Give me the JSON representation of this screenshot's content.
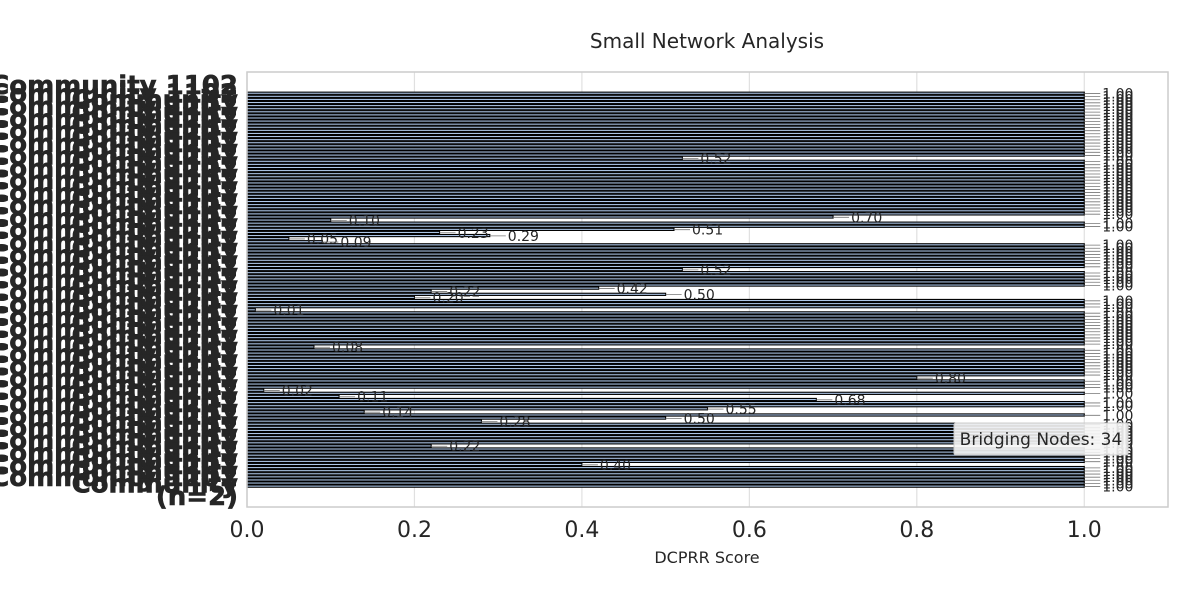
{
  "chart_data": {
    "type": "bar",
    "orientation": "horizontal",
    "title": "Small Network Analysis",
    "xlabel": "DCPRR Score",
    "ylabel": "",
    "xlim": [
      0.0,
      1.1
    ],
    "xticks": [
      0.0,
      0.2,
      0.4,
      0.6,
      0.8,
      1.0
    ],
    "xtick_labels": [
      "0.0",
      "0.2",
      "0.4",
      "0.6",
      "0.8",
      "1.0"
    ],
    "grid": true,
    "bar_color": "#aec7e8",
    "edge_color": "#000000",
    "category_label_samples": [
      "Community 1102",
      "Community",
      "(n=2)"
    ],
    "annotation": "Bridging Nodes: 34",
    "values": [
      1.0,
      1.0,
      1.0,
      1.0,
      1.0,
      1.0,
      1.0,
      1.0,
      1.0,
      1.0,
      1.0,
      1.0,
      1.0,
      1.0,
      1.0,
      1.0,
      1.0,
      1.0,
      1.0,
      1.0,
      1.0,
      0.52,
      1.0,
      1.0,
      1.0,
      1.0,
      1.0,
      1.0,
      1.0,
      1.0,
      1.0,
      1.0,
      1.0,
      1.0,
      1.0,
      1.0,
      1.0,
      1.0,
      1.0,
      1.0,
      0.7,
      0.1,
      1.0,
      1.0,
      0.51,
      0.23,
      0.29,
      0.05,
      0.09,
      1.0,
      1.0,
      1.0,
      1.0,
      1.0,
      1.0,
      1.0,
      1.0,
      0.52,
      1.0,
      1.0,
      1.0,
      1.0,
      1.0,
      0.42,
      0.22,
      0.5,
      0.2,
      1.0,
      1.0,
      1.0,
      0.01,
      1.0,
      1.0,
      1.0,
      1.0,
      1.0,
      1.0,
      1.0,
      1.0,
      1.0,
      1.0,
      1.0,
      0.08,
      1.0,
      1.0,
      1.0,
      1.0,
      1.0,
      1.0,
      1.0,
      1.0,
      1.0,
      0.8,
      1.0,
      1.0,
      1.0,
      0.02,
      1.0,
      0.11,
      0.68,
      1.0,
      1.0,
      0.55,
      0.14,
      1.0,
      0.5,
      0.28,
      1.0,
      1.0,
      1.0,
      1.0,
      1.0,
      1.0,
      1.0,
      0.22,
      1.0,
      1.0,
      1.0,
      1.0,
      1.0,
      0.4,
      1.0,
      1.0,
      1.0,
      1.0,
      1.0,
      1.0,
      1.0
    ],
    "value_labels": [
      "1.00",
      "1.00",
      "1.00",
      "1.00",
      "1.00",
      "1.00",
      "1.00",
      "1.00",
      "1.00",
      "1.00",
      "1.00",
      "1.00",
      "1.00",
      "1.00",
      "1.00",
      "1.00",
      "1.00",
      "1.00",
      "1.00",
      "1.00",
      "1.00",
      "0.52",
      "1.00",
      "1.00",
      "1.00",
      "1.00",
      "1.00",
      "1.00",
      "1.00",
      "1.00",
      "1.00",
      "1.00",
      "1.00",
      "1.00",
      "1.00",
      "1.00",
      "1.00",
      "1.00",
      "1.00",
      "1.00",
      "0.70",
      "0.10",
      "1.00",
      "1.00",
      "0.51",
      "0.23",
      "0.29",
      "0.05",
      "0.09",
      "1.00",
      "1.00",
      "1.00",
      "1.00",
      "1.00",
      "1.00",
      "1.00",
      "1.00",
      "0.52",
      "1.00",
      "1.00",
      "1.00",
      "1.00",
      "1.00",
      "0.42",
      "0.22",
      "0.50",
      "0.20",
      "1.00",
      "1.00",
      "1.00",
      "0.01",
      "1.00",
      "1.00",
      "1.00",
      "1.00",
      "1.00",
      "1.00",
      "1.00",
      "1.00",
      "1.00",
      "1.00",
      "1.00",
      "0.08",
      "1.00",
      "1.00",
      "1.00",
      "1.00",
      "1.00",
      "1.00",
      "1.00",
      "1.00",
      "1.00",
      "0.80",
      "1.00",
      "1.00",
      "1.00",
      "0.02",
      "1.00",
      "0.11",
      "0.68",
      "1.00",
      "1.00",
      "0.55",
      "0.14",
      "1.00",
      "0.50",
      "0.28",
      "1.00",
      "1.00",
      "1.00",
      "1.00",
      "1.00",
      "1.00",
      "1.00",
      "0.22",
      "1.00",
      "1.00",
      "1.00",
      "1.00",
      "1.00",
      "0.40",
      "1.00",
      "1.00",
      "1.00",
      "1.00",
      "1.00",
      "1.00",
      "1.00"
    ]
  }
}
